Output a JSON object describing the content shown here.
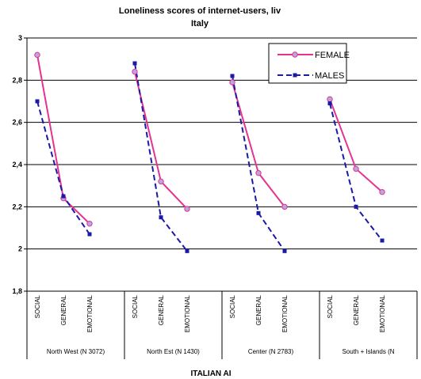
{
  "chart_data": {
    "type": "line",
    "title_line1": "Loneliness  scores of internet-users, liv",
    "title_line2": "Italy",
    "xlabel": "ITALIAN AI",
    "ylabel": "",
    "ylim": [
      1.8,
      3.0
    ],
    "yticks": [
      "1,8",
      "2",
      "2,2",
      "2,4",
      "2,6",
      "2,8",
      "3"
    ],
    "grid": true,
    "legend_position": "top-right",
    "groups": [
      {
        "name": "North West (N 3072)",
        "categories": [
          "SOCIAL",
          "GENERAL",
          "EMOTIONAL"
        ]
      },
      {
        "name": "North Est (N 1430)",
        "categories": [
          "SOCIAL",
          "GENERAL",
          "EMOTIONAL"
        ]
      },
      {
        "name": "Center (N 2783)",
        "categories": [
          "SOCIAL",
          "GENERAL",
          "EMOTIONAL"
        ]
      },
      {
        "name": "South + Islands (N",
        "categories": [
          "SOCIAL",
          "GENERAL",
          "EMOTIONAL"
        ]
      }
    ],
    "series": [
      {
        "name": "FEMALE",
        "color": "#e6338f",
        "dash": "solid",
        "marker": "circle",
        "values": [
          [
            2.92,
            2.24,
            2.12
          ],
          [
            2.84,
            2.32,
            2.19
          ],
          [
            2.79,
            2.36,
            2.2
          ],
          [
            2.71,
            2.38,
            2.27
          ]
        ]
      },
      {
        "name": "MALES",
        "color": "#1a1aa6",
        "dash": "dashed",
        "marker": "square",
        "values": [
          [
            2.7,
            2.25,
            2.07
          ],
          [
            2.88,
            2.15,
            1.99
          ],
          [
            2.82,
            2.17,
            1.99
          ],
          [
            2.69,
            2.2,
            2.04
          ]
        ]
      }
    ]
  }
}
